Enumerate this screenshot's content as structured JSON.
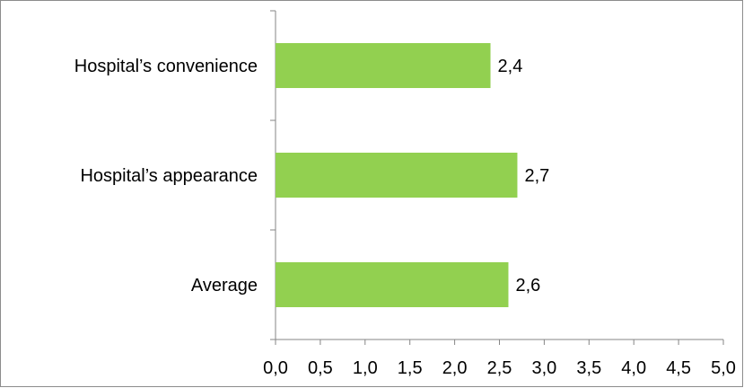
{
  "chart_data": {
    "type": "bar",
    "orientation": "horizontal",
    "categories": [
      "Hospital’s convenience",
      "Hospital’s appearance",
      "Average"
    ],
    "values": [
      2.4,
      2.7,
      2.6
    ],
    "value_labels": [
      "2,4",
      "2,7",
      "2,6"
    ],
    "x_ticks": [
      0.0,
      0.5,
      1.0,
      1.5,
      2.0,
      2.5,
      3.0,
      3.5,
      4.0,
      4.5,
      5.0
    ],
    "x_tick_labels": [
      "0,0",
      "0,5",
      "1,0",
      "1,5",
      "2,0",
      "2,5",
      "3,0",
      "3,5",
      "4,0",
      "4,5",
      "5,0"
    ],
    "xlim": [
      0,
      5
    ],
    "title": "",
    "xlabel": "",
    "ylabel": "",
    "grid": false,
    "legend": "none",
    "bar_color": "#92D050",
    "axis_color": "#868686"
  }
}
